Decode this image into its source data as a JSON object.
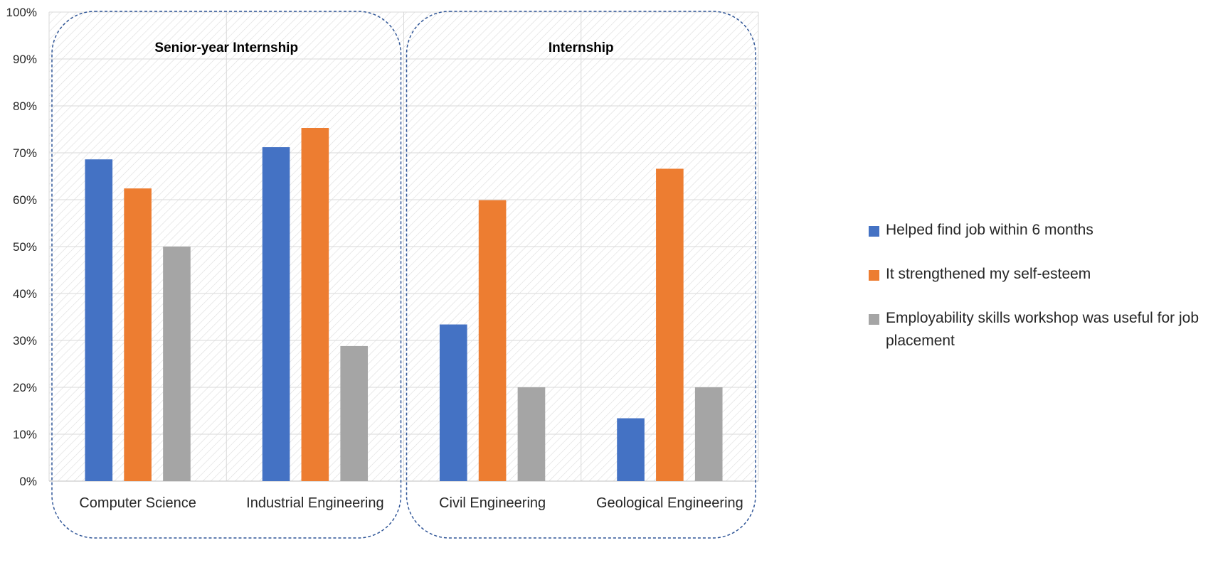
{
  "chart_data": {
    "type": "bar",
    "categories": [
      "Computer Science",
      "Industrial Engineering",
      "Civil Engineering",
      "Geological Engineering"
    ],
    "groups": [
      {
        "label": "Senior-year Internship",
        "categories": [
          "Computer Science",
          "Industrial Engineering"
        ]
      },
      {
        "label": "Internship",
        "categories": [
          "Civil Engineering",
          "Geological Engineering"
        ]
      }
    ],
    "series": [
      {
        "name": "Helped find job within 6 months",
        "color": "#4472C4",
        "values": [
          68.6,
          71.2,
          33.4,
          13.4
        ]
      },
      {
        "name": "It strengthened my self-esteem",
        "color": "#ED7D31",
        "values": [
          62.4,
          75.3,
          59.9,
          66.6
        ]
      },
      {
        "name": "Employability skills workshop was useful for job placement",
        "color": "#A5A5A5",
        "values": [
          50.0,
          28.8,
          20.0,
          20.0
        ]
      }
    ],
    "y_ticks": [
      "0%",
      "10%",
      "20%",
      "30%",
      "40%",
      "50%",
      "60%",
      "70%",
      "80%",
      "90%",
      "100%"
    ],
    "ylim": [
      0,
      100
    ],
    "grid": true,
    "legend_position": "right"
  }
}
